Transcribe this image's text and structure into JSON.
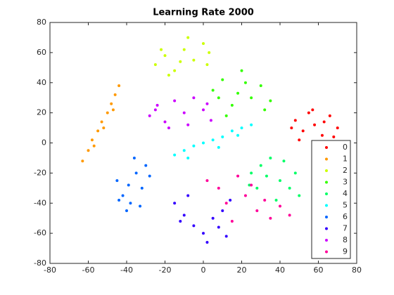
{
  "chart_data": {
    "type": "scatter",
    "title": "Learning Rate 2000",
    "xlim": [
      -80,
      80
    ],
    "ylim": [
      -80,
      80
    ],
    "xticks": [
      -80,
      -60,
      -40,
      -20,
      0,
      20,
      40,
      60,
      80
    ],
    "yticks": [
      -80,
      -60,
      -40,
      -20,
      0,
      20,
      40,
      60,
      80
    ],
    "legend": "southeast",
    "series": [
      {
        "name": "0",
        "color": "#ff0000",
        "x": [
          48,
          52,
          55,
          58,
          62,
          66,
          70,
          50,
          57,
          63,
          68,
          46
        ],
        "values": [
          15,
          8,
          20,
          12,
          5,
          18,
          10,
          2,
          22,
          14,
          4,
          10
        ]
      },
      {
        "name": "1",
        "color": "#ff9900",
        "x": [
          -63,
          -60,
          -58,
          -55,
          -53,
          -50,
          -48,
          -46,
          -44,
          -57,
          -52,
          -47
        ],
        "values": [
          -12,
          -5,
          2,
          8,
          14,
          20,
          26,
          32,
          38,
          -2,
          10,
          22
        ]
      },
      {
        "name": "2",
        "color": "#ccff00",
        "x": [
          -25,
          -20,
          -15,
          -10,
          -5,
          0,
          3,
          -18,
          -8,
          2,
          -22,
          -12
        ],
        "values": [
          52,
          58,
          48,
          62,
          55,
          66,
          60,
          45,
          70,
          52,
          62,
          54
        ]
      },
      {
        "name": "3",
        "color": "#33ff00",
        "x": [
          5,
          10,
          15,
          20,
          25,
          30,
          35,
          12,
          22,
          32,
          18,
          8
        ],
        "values": [
          35,
          42,
          25,
          48,
          30,
          38,
          28,
          18,
          40,
          22,
          33,
          30
        ]
      },
      {
        "name": "4",
        "color": "#00ff66",
        "x": [
          25,
          30,
          35,
          40,
          45,
          50,
          28,
          38,
          48,
          33,
          42,
          24
        ],
        "values": [
          -20,
          -15,
          -10,
          -25,
          -30,
          -35,
          -30,
          -38,
          -20,
          -22,
          -12,
          -28
        ]
      },
      {
        "name": "5",
        "color": "#00ffff",
        "x": [
          -15,
          -10,
          -5,
          0,
          5,
          10,
          15,
          20,
          25,
          -8,
          8,
          18
        ],
        "values": [
          -8,
          -5,
          -2,
          0,
          2,
          4,
          8,
          10,
          12,
          -10,
          -3,
          5
        ]
      },
      {
        "name": "6",
        "color": "#0066ff",
        "x": [
          -45,
          -42,
          -38,
          -35,
          -32,
          -30,
          -40,
          -36,
          -28,
          -44,
          -33,
          -39
        ],
        "values": [
          -25,
          -35,
          -40,
          -20,
          -30,
          -15,
          -45,
          -10,
          -22,
          -38,
          -42,
          -28
        ]
      },
      {
        "name": "7",
        "color": "#3300ff",
        "x": [
          -15,
          -10,
          -5,
          0,
          5,
          10,
          14,
          -8,
          2,
          8,
          -12,
          12
        ],
        "values": [
          -40,
          -48,
          -55,
          -60,
          -50,
          -45,
          -38,
          -35,
          -66,
          -56,
          -52,
          -62
        ]
      },
      {
        "name": "8",
        "color": "#cc00ff",
        "x": [
          -28,
          -24,
          -20,
          -15,
          -10,
          -5,
          0,
          4,
          -18,
          -8,
          2,
          -25
        ],
        "values": [
          18,
          25,
          14,
          28,
          20,
          30,
          22,
          15,
          10,
          12,
          26,
          22
        ]
      },
      {
        "name": "9",
        "color": "#ff0099",
        "x": [
          2,
          8,
          12,
          18,
          22,
          28,
          35,
          40,
          45,
          15,
          25,
          32
        ],
        "values": [
          -25,
          -30,
          -40,
          -22,
          -35,
          -45,
          -50,
          -42,
          -48,
          -52,
          -28,
          -38
        ]
      }
    ]
  }
}
